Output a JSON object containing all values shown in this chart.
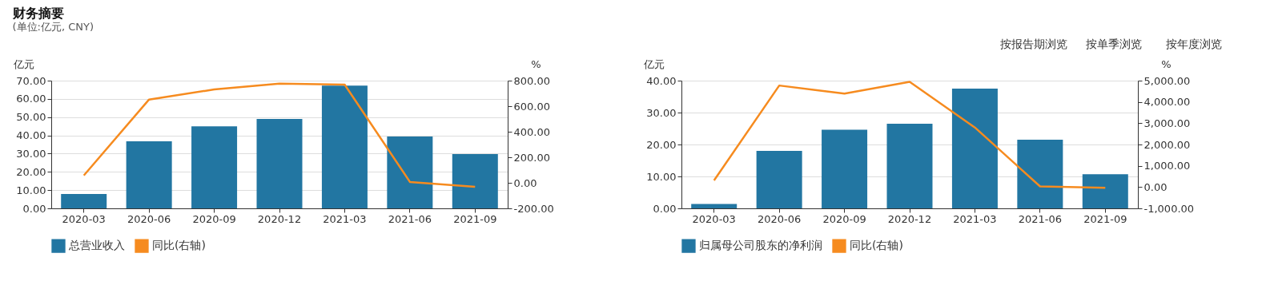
{
  "chart_data": [
    {
      "type": "bar",
      "title": "财务摘要",
      "subtitle": "(单位:亿元, CNY)",
      "ylabel": "亿元",
      "y2label": "%",
      "categories": [
        "2020-03",
        "2020-06",
        "2020-09",
        "2020-12",
        "2021-03",
        "2021-06",
        "2021-09"
      ],
      "series": [
        {
          "name": "总营业收入",
          "color": "#2276a2",
          "values": [
            7.9,
            36.8,
            45.0,
            49.0,
            67.3,
            39.4,
            29.7
          ]
        },
        {
          "name": "同比(右轴)",
          "color": "#f68b1f",
          "type": "line",
          "axis": "y2",
          "values": [
            58,
            652,
            731,
            777,
            769,
            7,
            -31
          ]
        }
      ],
      "ylim": [
        0,
        70
      ],
      "yticks": [
        {
          "value": 0,
          "label": "0.00"
        },
        {
          "value": 10,
          "label": "10.00"
        },
        {
          "value": 20,
          "label": "20.00"
        },
        {
          "value": 30,
          "label": "30.00"
        },
        {
          "value": 40,
          "label": "40.00"
        },
        {
          "value": 50,
          "label": "50.00"
        },
        {
          "value": 60,
          "label": "60.00"
        },
        {
          "value": 70,
          "label": "70.00"
        }
      ],
      "y2lim": [
        -200,
        800
      ],
      "y2ticks": [
        {
          "value": -200,
          "label": "-200.00"
        },
        {
          "value": 0,
          "label": "0.00"
        },
        {
          "value": 200,
          "label": "200.00"
        },
        {
          "value": 400,
          "label": "400.00"
        },
        {
          "value": 600,
          "label": "600.00"
        },
        {
          "value": 800,
          "label": "800.00"
        }
      ],
      "grid": "y",
      "legend": "bottom"
    },
    {
      "type": "bar",
      "ylabel": "亿元",
      "y2label": "%",
      "annotations": [
        "按报告期浏览",
        "按单季浏览",
        "按年度浏览"
      ],
      "categories": [
        "2020-03",
        "2020-06",
        "2020-09",
        "2020-12",
        "2021-03",
        "2021-06",
        "2021-09"
      ],
      "series": [
        {
          "name": "归属母公司股东的净利润",
          "color": "#2276a2",
          "values": [
            1.4,
            18.0,
            24.6,
            26.5,
            37.5,
            21.5,
            10.7
          ]
        },
        {
          "name": "同比(右轴)",
          "color": "#f68b1f",
          "type": "line",
          "axis": "y2",
          "values": [
            310,
            4770,
            4390,
            4940,
            2800,
            30,
            -30
          ]
        }
      ],
      "ylim": [
        0,
        40
      ],
      "yticks": [
        {
          "value": 0,
          "label": "0.00"
        },
        {
          "value": 10,
          "label": "10.00"
        },
        {
          "value": 20,
          "label": "20.00"
        },
        {
          "value": 30,
          "label": "30.00"
        },
        {
          "value": 40,
          "label": "40.00"
        }
      ],
      "y2lim": [
        -1000,
        5000
      ],
      "y2ticks": [
        {
          "value": -1000,
          "label": "-1,000.00"
        },
        {
          "value": 0,
          "label": "0.00"
        },
        {
          "value": 1000,
          "label": "1,000.00"
        },
        {
          "value": 2000,
          "label": "2,000.00"
        },
        {
          "value": 3000,
          "label": "3,000.00"
        },
        {
          "value": 4000,
          "label": "4,000.00"
        },
        {
          "value": 5000,
          "label": "5,000.00"
        }
      ],
      "grid": "y",
      "legend": "bottom"
    }
  ]
}
